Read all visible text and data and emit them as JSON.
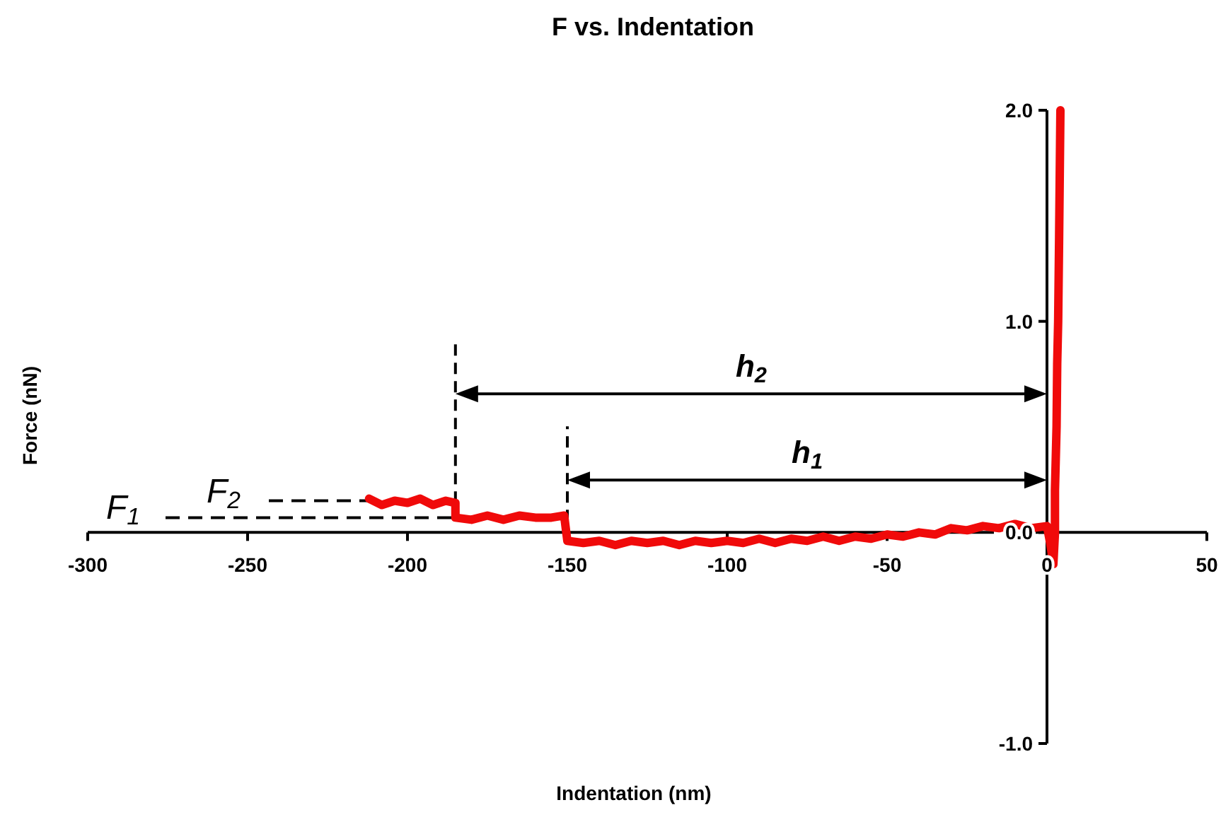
{
  "chart_data": {
    "type": "line",
    "title": "F vs. Indentation",
    "xlabel": "Indentation (nm)",
    "ylabel": "Force (nN)",
    "xlim": [
      -300,
      50
    ],
    "xticks": [
      -300,
      -250,
      -200,
      -150,
      -100,
      -50,
      0,
      50
    ],
    "ylim": [
      -1,
      2
    ],
    "yticks": [
      {
        "value": -1,
        "label": "-1.0"
      },
      {
        "value": 0,
        "label": "0.0"
      },
      {
        "value": 1,
        "label": "1.0"
      },
      {
        "value": 2,
        "label": "2.0"
      }
    ],
    "grid": false,
    "marker": "none",
    "line_style": "solid",
    "series": [
      {
        "color": "#f00a0a",
        "x": [
          -212,
          -208,
          -204,
          -200,
          -196,
          -192,
          -188,
          -185,
          -185,
          -180,
          -175,
          -170,
          -165,
          -160,
          -155,
          -151,
          -150,
          -145,
          -140,
          -135,
          -130,
          -125,
          -120,
          -115,
          -110,
          -105,
          -100,
          -95,
          -90,
          -85,
          -80,
          -75,
          -70,
          -65,
          -60,
          -55,
          -50,
          -45,
          -40,
          -35,
          -30,
          -25,
          -20,
          -15,
          -10,
          -5,
          0,
          1,
          2,
          2.5,
          2.5,
          3,
          3.2,
          3.5,
          3.8,
          4,
          4.2
        ],
        "values": [
          0.16,
          0.13,
          0.15,
          0.14,
          0.16,
          0.13,
          0.15,
          0.14,
          0.07,
          0.06,
          0.08,
          0.06,
          0.08,
          0.07,
          0.07,
          0.08,
          -0.04,
          -0.05,
          -0.04,
          -0.06,
          -0.04,
          -0.05,
          -0.04,
          -0.06,
          -0.04,
          -0.05,
          -0.04,
          -0.05,
          -0.03,
          -0.05,
          -0.03,
          -0.04,
          -0.02,
          -0.04,
          -0.02,
          -0.03,
          -0.01,
          -0.02,
          0.0,
          -0.01,
          0.02,
          0.01,
          0.03,
          0.02,
          0.04,
          0.02,
          0.03,
          -0.05,
          -0.15,
          0.0,
          0.2,
          0.5,
          0.8,
          1.0,
          1.4,
          1.7,
          2.0
        ]
      }
    ],
    "annotations": [
      {
        "text": "F$_{1}$",
        "x": -185,
        "y": 0.07
      },
      {
        "text": "F$_{2}$",
        "x": -212,
        "y": 0.15
      },
      "h$_{1}$",
      "h$_{2}$"
    ],
    "ref_lines": [
      {
        "axis": "x",
        "value": -150,
        "line_style": "dashed"
      },
      {
        "axis": "x",
        "value": -185,
        "line_style": "dashed"
      }
    ]
  }
}
